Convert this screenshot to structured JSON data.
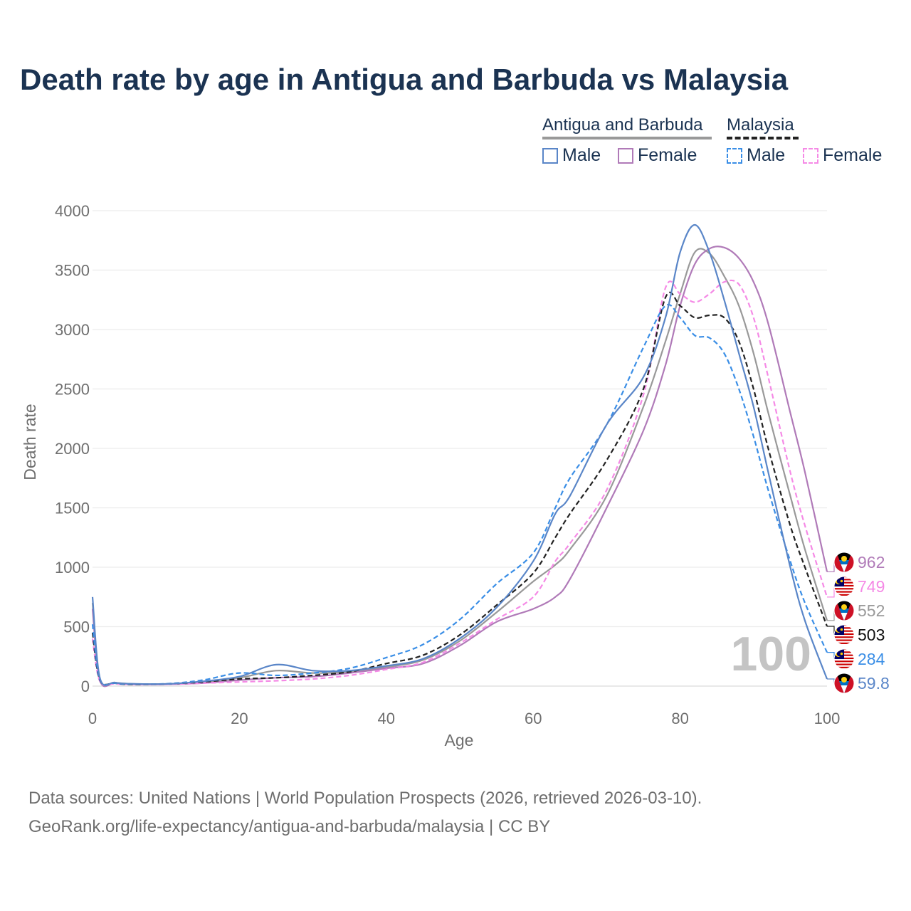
{
  "title": "Death rate by age in Antigua and Barbuda vs Malaysia",
  "legend": {
    "group1": "Antigua and Barbuda",
    "group2": "Malaysia",
    "male": "Male",
    "female": "Female"
  },
  "colors": {
    "ag_total": "#999999",
    "ag_male": "#5a86c8",
    "ag_female": "#b07ab8",
    "my_total": "#222222",
    "my_male": "#3a8ee6",
    "my_female": "#f58ae6",
    "title": "#1b3352",
    "muted": "#6e6e6e"
  },
  "chart_data": {
    "type": "line",
    "title": "Death rate by age in Antigua and Barbuda vs Malaysia",
    "xlabel": "Age",
    "ylabel": "Death rate",
    "xlim": [
      0,
      100
    ],
    "ylim": [
      0,
      4000
    ],
    "xticks": [
      0,
      20,
      40,
      60,
      80,
      100
    ],
    "yticks": [
      0,
      500,
      1000,
      1500,
      2000,
      2500,
      3000,
      3500,
      4000
    ],
    "grid": true,
    "year_label": "100",
    "x": [
      0,
      1,
      3,
      5,
      10,
      15,
      20,
      25,
      30,
      35,
      40,
      45,
      50,
      55,
      60,
      63,
      65,
      70,
      75,
      78,
      80,
      82,
      84,
      86,
      88,
      90,
      92,
      95,
      97,
      100
    ],
    "series": [
      {
        "key": "ag_total",
        "name": "Antigua and Barbuda",
        "dash": false,
        "end_label": "552",
        "values": [
          700,
          60,
          30,
          20,
          18,
          35,
          70,
          130,
          110,
          120,
          160,
          220,
          380,
          620,
          880,
          1020,
          1150,
          1600,
          2350,
          2900,
          3300,
          3650,
          3640,
          3450,
          3200,
          2800,
          2300,
          1600,
          1150,
          552
        ]
      },
      {
        "key": "ag_male",
        "name": "Male",
        "dash": false,
        "end_label": "59.8",
        "values": [
          750,
          70,
          30,
          20,
          18,
          40,
          80,
          180,
          130,
          130,
          170,
          230,
          400,
          660,
          1050,
          1450,
          1600,
          2200,
          2600,
          3100,
          3650,
          3880,
          3650,
          3250,
          2800,
          2350,
          1800,
          1000,
          550,
          59.8
        ]
      },
      {
        "key": "ag_female",
        "name": "Female",
        "dash": false,
        "end_label": "962",
        "values": [
          650,
          50,
          25,
          15,
          15,
          25,
          50,
          70,
          80,
          110,
          150,
          190,
          340,
          540,
          650,
          750,
          900,
          1500,
          2150,
          2700,
          3200,
          3550,
          3680,
          3690,
          3600,
          3400,
          3050,
          2300,
          1800,
          962
        ]
      },
      {
        "key": "my_total",
        "name": "Malaysia",
        "dash": true,
        "end_label": "503",
        "values": [
          450,
          50,
          25,
          15,
          18,
          35,
          60,
          70,
          90,
          120,
          190,
          260,
          430,
          680,
          950,
          1250,
          1450,
          1900,
          2500,
          3270,
          3200,
          3100,
          3120,
          3100,
          2900,
          2500,
          2000,
          1350,
          1000,
          503
        ]
      },
      {
        "key": "my_male",
        "name": "Male",
        "dash": true,
        "end_label": "284",
        "values": [
          520,
          55,
          25,
          18,
          20,
          50,
          110,
          90,
          110,
          150,
          240,
          350,
          560,
          860,
          1120,
          1500,
          1750,
          2200,
          2850,
          3200,
          3100,
          2950,
          2930,
          2800,
          2500,
          2100,
          1650,
          1050,
          700,
          284
        ]
      },
      {
        "key": "my_female",
        "name": "Female",
        "dash": true,
        "end_label": "749",
        "values": [
          400,
          40,
          20,
          15,
          15,
          25,
          35,
          45,
          60,
          90,
          140,
          200,
          360,
          560,
          750,
          1050,
          1200,
          1650,
          2450,
          3350,
          3300,
          3230,
          3300,
          3400,
          3380,
          3100,
          2600,
          1800,
          1350,
          749
        ]
      }
    ]
  },
  "source": {
    "line1": "Data sources: United Nations | World Population Prospects (2026, retrieved 2026-03-10).",
    "line2": "GeoRank.org/life-expectancy/antigua-and-barbuda/malaysia | CC BY"
  }
}
